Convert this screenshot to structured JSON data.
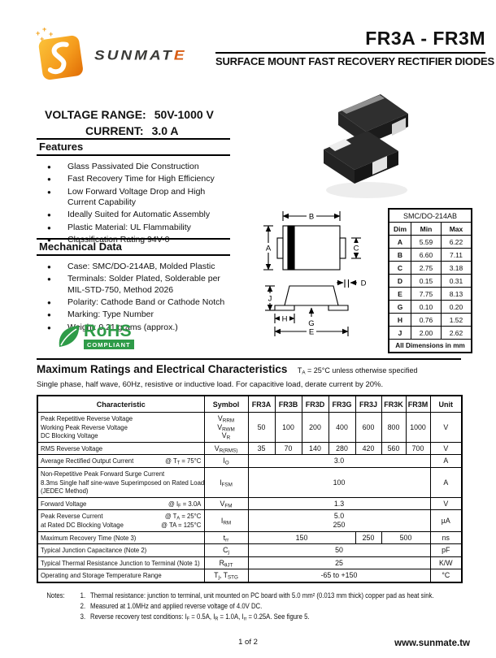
{
  "header": {
    "brand": "SUNMAT",
    "brand_accent": "E",
    "part_range": "FR3A - FR3M",
    "subtitle": "SURFACE MOUNT FAST RECOVERY RECTIFIER DIODES"
  },
  "summary": {
    "voltage_label": "VOLTAGE  RANGE:",
    "voltage_value": "50V-1000 V",
    "current_label": "CURRENT:",
    "current_value": "3.0 A"
  },
  "features": {
    "title": "Features",
    "items": [
      "Glass Passivated Die Construction",
      "Fast Recovery Time for High Efficiency",
      "Low Forward Voltage Drop and High Current Capability",
      "Ideally Suited for Automatic Assembly",
      "Plastic Material: UL Flammability",
      "Classification Rating 94V-0"
    ]
  },
  "mechanical": {
    "title": "Mechanical Data",
    "items": [
      "Case: SMC/DO-214AB, Molded Plastic",
      "Terminals: Solder Plated, Solderable per MIL-STD-750, Method 2026",
      "Polarity: Cathode Band or Cathode Notch",
      "Marking: Type Number",
      "Weight: 0.21 grams (approx.)"
    ]
  },
  "rohs": {
    "name": "RoHS",
    "bar": "COMPLIANT",
    "green": "#2E9B48"
  },
  "dim_table": {
    "title": "SMC/DO-214AB",
    "columns": [
      "Dim",
      "Min",
      "Max"
    ],
    "rows": [
      [
        "A",
        "5.59",
        "6.22"
      ],
      [
        "B",
        "6.60",
        "7.11"
      ],
      [
        "C",
        "2.75",
        "3.18"
      ],
      [
        "D",
        "0.15",
        "0.31"
      ],
      [
        "E",
        "7.75",
        "8.13"
      ],
      [
        "G",
        "0.10",
        "0.20"
      ],
      [
        "H",
        "0.76",
        "1.52"
      ],
      [
        "J",
        "2.00",
        "2.62"
      ]
    ],
    "footer": "All Dimensions in mm"
  },
  "drawing_labels": {
    "A": "A",
    "B": "B",
    "C": "C",
    "D": "D",
    "E": "E",
    "G": "G",
    "H": "H",
    "J": "J"
  },
  "ratings": {
    "title": "Maximum Ratings and Electrical Characteristics",
    "title_note": "T~A~ = 25°C unless otherwise specified",
    "subtitle": "Single phase, half wave, 60Hz, resistive or inductive load. For capacitive load, derate current by 20%.",
    "headers": [
      "Characteristic",
      "Symbol",
      "FR3A",
      "FR3B",
      "FR3D",
      "FR3G",
      "FR3J",
      "FR3K",
      "FR3M",
      "Unit"
    ],
    "rows": [
      {
        "char": [
          "Peak Repetitive Reverse Voltage",
          "Working Peak Reverse Voltage",
          "DC Blocking Voltage"
        ],
        "symbol": [
          "V~RRM~",
          "V~RWM~",
          "V~R~"
        ],
        "values": [
          "50",
          "100",
          "200",
          "400",
          "600",
          "800",
          "1000"
        ],
        "unit": "V"
      },
      {
        "char": [
          "RMS Reverse Voltage"
        ],
        "symbol": [
          "V~R(RMS)~"
        ],
        "values": [
          "35",
          "70",
          "140",
          "280",
          "420",
          "560",
          "700"
        ],
        "unit": "V"
      },
      {
        "char": [
          "Average Rectified Output Current"
        ],
        "cond": [
          "@ T~T~ = 75°C"
        ],
        "symbol": [
          "I~O~"
        ],
        "values": [
          "3.0"
        ],
        "unit": "A"
      },
      {
        "char": [
          "Non-Repetitive Peak Forward Surge Current",
          "8.3ms Single half sine-wave Superimposed on Rated Load",
          "(JEDEC Method)"
        ],
        "symbol": [
          "I~FSM~"
        ],
        "values": [
          "100"
        ],
        "unit": "A"
      },
      {
        "char": [
          "Forward Voltage"
        ],
        "cond": [
          "@ I~F~ = 3.0A"
        ],
        "symbol": [
          "V~FM~"
        ],
        "values": [
          "1.3"
        ],
        "unit": "V"
      },
      {
        "char": [
          "Peak Reverse Current",
          "at Rated DC Blocking Voltage"
        ],
        "cond": [
          "@ T~A~ =   25°C",
          "@ TA = 125°C"
        ],
        "symbol": [
          "I~RM~"
        ],
        "values": [
          "5.0",
          "250"
        ],
        "unit": "µA"
      },
      {
        "char": [
          "Maximum Recovery Time (Note 3)"
        ],
        "symbol": [
          "t~rr~"
        ],
        "values": [
          "150",
          "250",
          "500"
        ],
        "unit": "ns"
      },
      {
        "char": [
          "Typical Junction Capacitance (Note 2)"
        ],
        "symbol": [
          "C~j~"
        ],
        "values": [
          "50"
        ],
        "unit": "pF"
      },
      {
        "char": [
          "Typical Thermal Resistance Junction to Terminal (Note 1)"
        ],
        "symbol": [
          "R~θJT~"
        ],
        "values": [
          "25"
        ],
        "unit": "K/W"
      },
      {
        "char": [
          "Operating and Storage Temperature Range"
        ],
        "symbol": [
          "T~j~, T~STG~"
        ],
        "values": [
          "-65 to +150"
        ],
        "unit": "°C"
      }
    ]
  },
  "notes": {
    "label": "Notes:",
    "items": [
      {
        "num": "1.",
        "text": "Thermal resistance: junction to terminal, unit mounted on PC board with 5.0 mm² (0.013 mm thick) copper pad as heat sink."
      },
      {
        "num": "2.",
        "text": "Measured at 1.0MHz and applied reverse voltage of 4.0V DC."
      },
      {
        "num": "3.",
        "text": "Reverse recovery test conditions: I~F~ = 0.5A, I~R~ = 1.0A, I~rr~ = 0.25A. See figure 5."
      }
    ]
  },
  "footer": {
    "page": "1 of 2",
    "website": "www.sunmate.tw"
  }
}
